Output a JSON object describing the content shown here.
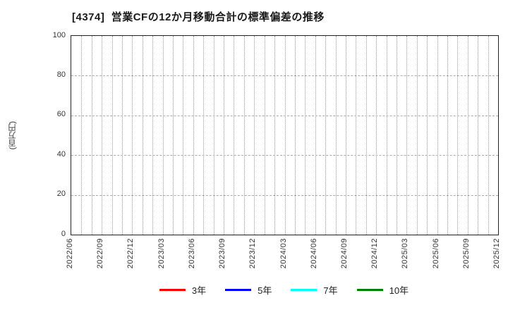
{
  "title": "[4374]  営業CFの12か月移動合計の標準偏差の推移",
  "y_axis": {
    "label": "(百万円)",
    "min": 0,
    "max": 100,
    "ticks": [
      0,
      20,
      40,
      60,
      80,
      100
    ]
  },
  "x_axis": {
    "months_total": 43,
    "tick_labels": [
      "2022/06",
      "2022/09",
      "2022/12",
      "2023/03",
      "2023/06",
      "2023/09",
      "2023/12",
      "2024/03",
      "2024/06",
      "2024/09",
      "2024/12",
      "2025/03",
      "2025/06",
      "2025/09",
      "2025/12"
    ]
  },
  "legend": [
    {
      "label": "3年",
      "color": "#ff0000"
    },
    {
      "label": "5年",
      "color": "#0000ff"
    },
    {
      "label": "7年",
      "color": "#00ffff"
    },
    {
      "label": "10年",
      "color": "#008000"
    }
  ],
  "chart_data": {
    "type": "line",
    "title": "[4374] 営業CFの12か月移動合計の標準偏差の推移",
    "ylabel": "(百万円)",
    "ylim": [
      0,
      100
    ],
    "y_ticks": [
      0,
      20,
      40,
      60,
      80,
      100
    ],
    "x_tick_labels": [
      "2022/06",
      "2022/09",
      "2022/12",
      "2023/03",
      "2023/06",
      "2023/09",
      "2023/12",
      "2024/03",
      "2024/06",
      "2024/09",
      "2024/12",
      "2025/03",
      "2025/06",
      "2025/09",
      "2025/12"
    ],
    "grid": true,
    "legend_position": "bottom",
    "series": [
      {
        "name": "3年",
        "color": "#ff0000",
        "values": []
      },
      {
        "name": "5年",
        "color": "#0000ff",
        "values": []
      },
      {
        "name": "7年",
        "color": "#00ffff",
        "values": []
      },
      {
        "name": "10年",
        "color": "#008000",
        "values": []
      }
    ]
  }
}
